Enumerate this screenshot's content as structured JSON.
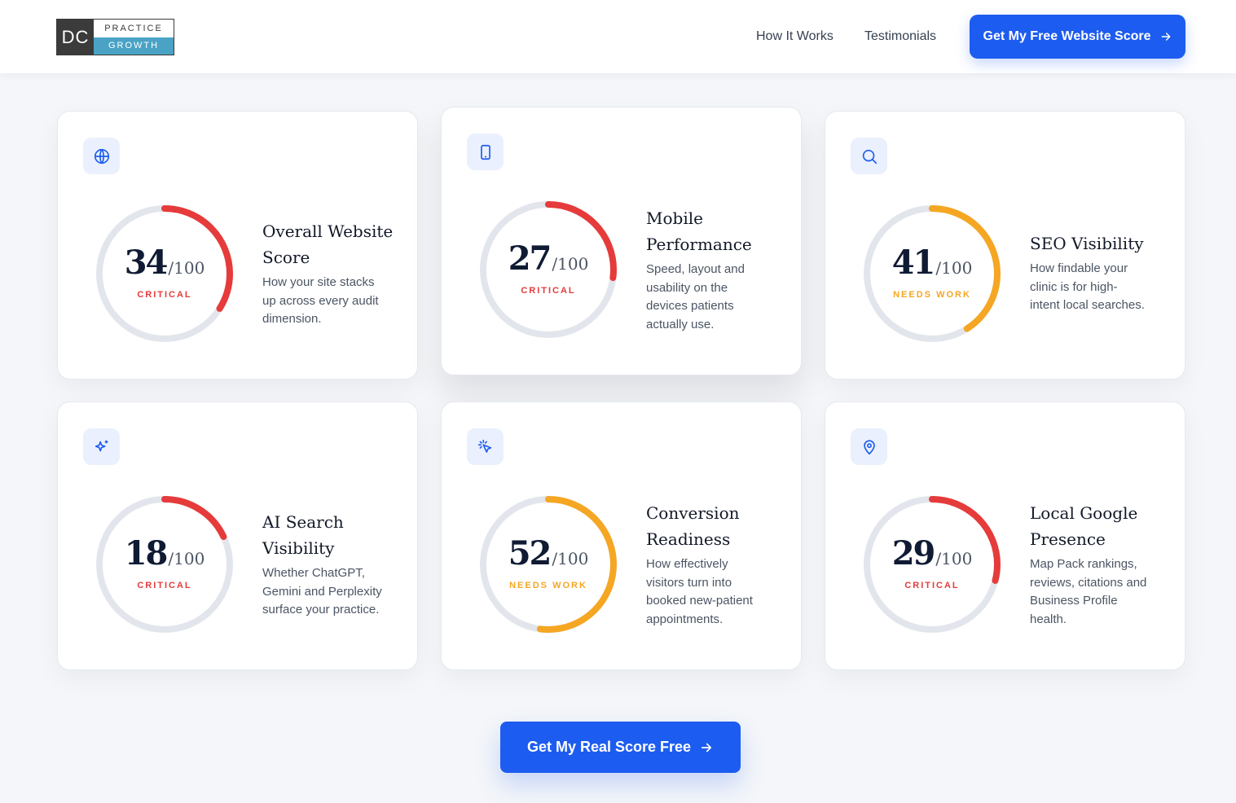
{
  "header": {
    "logo": {
      "mark": "DC",
      "top": "PRACTICE",
      "bottom": "GROWTH"
    },
    "nav": {
      "how_it_works": "How It Works",
      "testimonials": "Testimonials"
    },
    "cta_label": "Get My Free Website Score"
  },
  "colors": {
    "accent": "#1d5cf0",
    "critical": "#e63b3b",
    "needs_work": "#f5a623",
    "ring_track": "#e2e6ec",
    "icon_bg": "#eaf0fd"
  },
  "cards": [
    {
      "icon": "globe-icon",
      "score": "34",
      "max": "/100",
      "percent": 34,
      "status": "CRITICAL",
      "level": "critical",
      "title_1": "Overall Website",
      "title_2": "Score",
      "desc_1": "How your site stacks",
      "desc_2": "up across every audit",
      "desc_3": "dimension.",
      "desc_4": ""
    },
    {
      "icon": "mobile-icon",
      "score": "27",
      "max": "/100",
      "percent": 27,
      "status": "CRITICAL",
      "level": "critical",
      "title_1": "Mobile",
      "title_2": "Performance",
      "desc_1": "Speed, layout and",
      "desc_2": "usability on the",
      "desc_3": "devices patients",
      "desc_4": "actually use."
    },
    {
      "icon": "search-icon",
      "score": "41",
      "max": "/100",
      "percent": 41,
      "status": "NEEDS WORK",
      "level": "needs_work",
      "title_1": "SEO Visibility",
      "title_2": "",
      "desc_1": "How findable your",
      "desc_2": "clinic is for high-",
      "desc_3": "intent local searches.",
      "desc_4": ""
    },
    {
      "icon": "sparkles-icon",
      "score": "18",
      "max": "/100",
      "percent": 18,
      "status": "CRITICAL",
      "level": "critical",
      "title_1": "AI Search",
      "title_2": "Visibility",
      "desc_1": "Whether ChatGPT,",
      "desc_2": "Gemini and Perplexity",
      "desc_3": "surface your practice.",
      "desc_4": ""
    },
    {
      "icon": "cursor-click-icon",
      "score": "52",
      "max": "/100",
      "percent": 52,
      "status": "NEEDS WORK",
      "level": "needs_work",
      "title_1": "Conversion",
      "title_2": "Readiness",
      "desc_1": "How effectively",
      "desc_2": "visitors turn into",
      "desc_3": "booked new-patient",
      "desc_4": "appointments."
    },
    {
      "icon": "map-pin-icon",
      "score": "29",
      "max": "/100",
      "percent": 29,
      "status": "CRITICAL",
      "level": "critical",
      "title_1": "Local Google",
      "title_2": "Presence",
      "desc_1": "Map Pack rankings,",
      "desc_2": "reviews, citations and",
      "desc_3": "Business Profile",
      "desc_4": "health."
    }
  ],
  "bottom_cta_label": "Get My Real Score Free"
}
